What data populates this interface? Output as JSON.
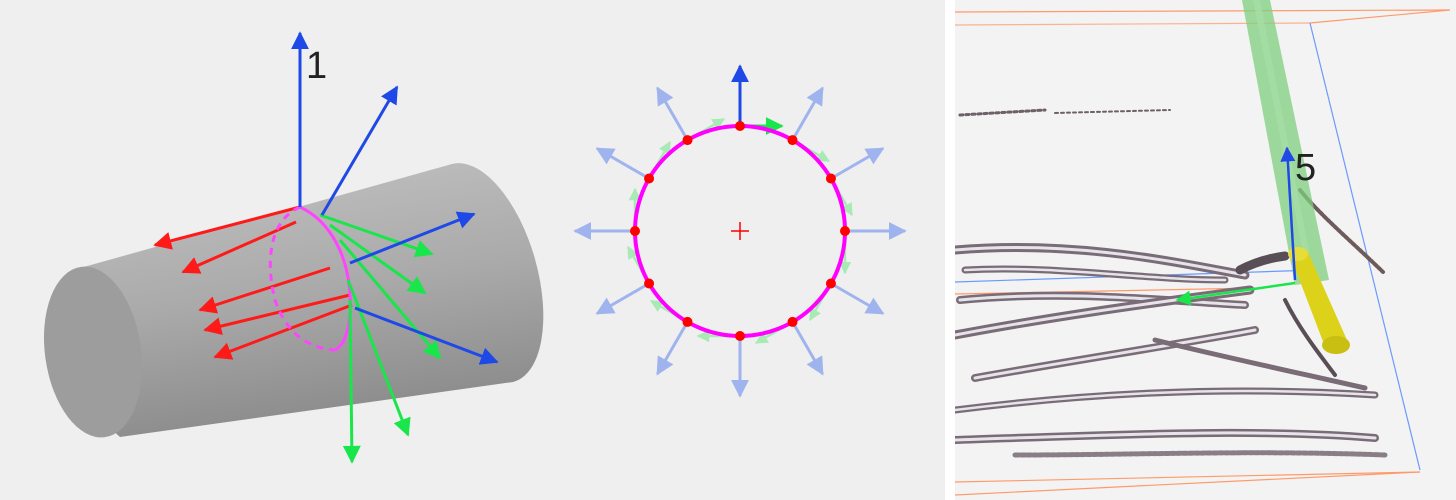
{
  "labels": {
    "left_axis": "1",
    "right_axis": "5"
  },
  "colors": {
    "background": "#efefef",
    "cylinder": "#a9a9a9",
    "red_arrow": "#ff1a1a",
    "green_arrow": "#19e64a",
    "blue_arrow": "#1f49e6",
    "circle": "#ff00ff",
    "points": "#ff0000",
    "normals": "#9fb3ee",
    "tangents": "#a8eab4",
    "bbox_orange": "#ff9a6a",
    "bbox_blue": "#6a9aff",
    "green_cylinder": "#7fcf7f",
    "yellow_cylinder": "#dcd21a",
    "point_cloud": "#6e6068"
  },
  "ring": {
    "point_count": 12
  }
}
